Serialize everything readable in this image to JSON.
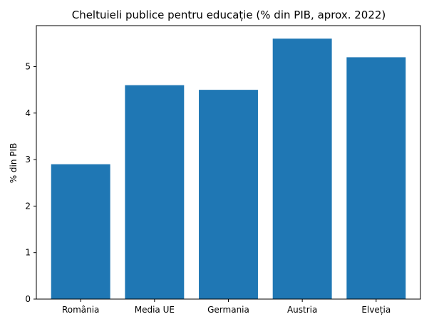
{
  "chart_data": {
    "type": "bar",
    "title": "Cheltuieli publice pentru educație (% din PIB, aprox. 2022)",
    "xlabel": "",
    "ylabel": "% din PIB",
    "categories": [
      "România",
      "Media UE",
      "Germania",
      "Austria",
      "Elveția"
    ],
    "values": [
      2.9,
      4.6,
      4.5,
      5.6,
      5.2
    ],
    "ylim": [
      0,
      5.88
    ],
    "yticks": [
      0,
      1,
      2,
      3,
      4,
      5
    ],
    "grid": false,
    "bar_color": "#1f77b4"
  }
}
